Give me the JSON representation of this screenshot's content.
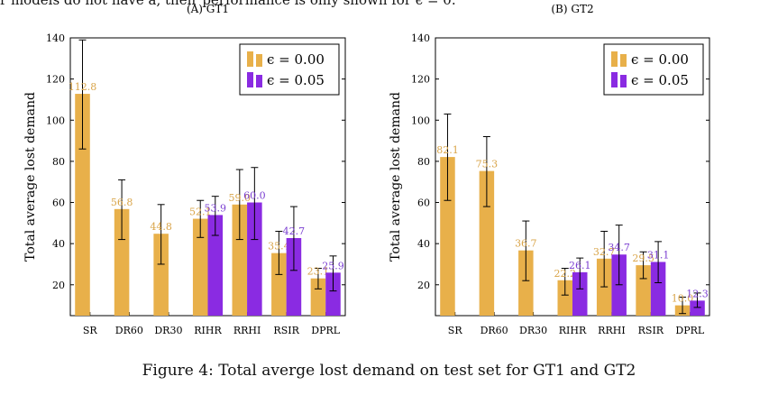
{
  "page": {
    "cutoff_text": "r models do not have a, their performance is only shown for ϵ = 0.",
    "caption": "Figure 4: Total averge lost demand on test set for GT1 and GT2"
  },
  "chart_data": [
    {
      "type": "bar",
      "title": "(A) GT1",
      "ylabel": "Total average lost demand",
      "xlabel": "",
      "ylim": [
        5,
        140
      ],
      "yticks": [
        20,
        40,
        60,
        80,
        100,
        120,
        140
      ],
      "categories": [
        "SR",
        "DR60",
        "DR30",
        "RIHR",
        "RRHI",
        "RSIR",
        "DPRL"
      ],
      "legend_position": "top-right",
      "series": [
        {
          "name": "ϵ = 0.00",
          "color": "#E8B04A",
          "label_color": "#D9A54A",
          "values": [
            112.8,
            56.8,
            44.8,
            52.1,
            59.0,
            35.4,
            23.1
          ],
          "labels": [
            "112.8",
            "56.8",
            "44.8",
            "52.1",
            "59.0",
            "35.4",
            "23.1"
          ],
          "error_low": [
            86,
            42,
            30,
            43,
            42,
            25,
            18
          ],
          "error_high": [
            139,
            71,
            59,
            61,
            76,
            46,
            28
          ]
        },
        {
          "name": "ϵ = 0.05",
          "color": "#8A2BE2",
          "label_color": "#7B3FD1",
          "values": [
            null,
            null,
            null,
            53.9,
            60.0,
            42.7,
            25.9
          ],
          "labels": [
            null,
            null,
            null,
            "53.9",
            "60.0",
            "42.7",
            "25.9"
          ],
          "error_low": [
            null,
            null,
            null,
            44,
            42,
            27,
            17
          ],
          "error_high": [
            null,
            null,
            null,
            63,
            77,
            58,
            34
          ]
        }
      ]
    },
    {
      "type": "bar",
      "title": "(B) GT2",
      "ylabel": "Total average lost demand",
      "xlabel": "",
      "ylim": [
        5,
        140
      ],
      "yticks": [
        20,
        40,
        60,
        80,
        100,
        120,
        140
      ],
      "categories": [
        "SR",
        "DR60",
        "DR30",
        "RIHR",
        "RRHI",
        "RSIR",
        "DPRL"
      ],
      "legend_position": "top-right",
      "series": [
        {
          "name": "ϵ = 0.00",
          "color": "#E8B04A",
          "label_color": "#D9A54A",
          "values": [
            82.1,
            75.3,
            36.7,
            22.2,
            32.7,
            29.5,
            10.0
          ],
          "labels": [
            "82.1",
            "75.3",
            "36.7",
            "22.2",
            "32.7",
            "29.5",
            "10.0"
          ],
          "error_low": [
            61,
            58,
            22,
            15,
            19,
            23,
            6
          ],
          "error_high": [
            103,
            92,
            51,
            28,
            46,
            36,
            14
          ]
        },
        {
          "name": "ϵ = 0.05",
          "color": "#8A2BE2",
          "label_color": "#7B3FD1",
          "values": [
            null,
            null,
            null,
            26.1,
            34.7,
            31.1,
            12.3
          ],
          "labels": [
            null,
            null,
            null,
            "26.1",
            "34.7",
            "31.1",
            "12.3"
          ],
          "error_low": [
            null,
            null,
            null,
            18,
            20,
            21,
            9
          ],
          "error_high": [
            null,
            null,
            null,
            33,
            49,
            41,
            16
          ]
        }
      ]
    }
  ]
}
